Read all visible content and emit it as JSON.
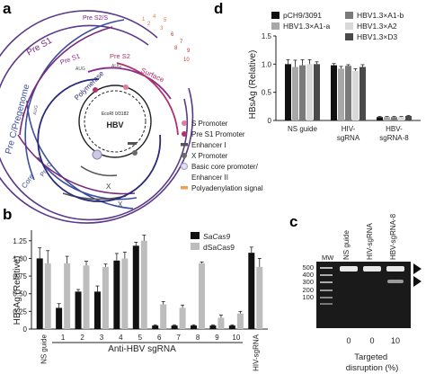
{
  "panels": {
    "a": "a",
    "b": "b",
    "c": "c",
    "d": "d"
  },
  "panel_a": {
    "arcs": {
      "pre_s2_s": "Pre S2/S",
      "pre_s1": "Pre S1",
      "pre_c_pregenome": "Pre C/Pregenome",
      "core": "Core",
      "pre_c": "Pre C",
      "polymerase": "Polymerase",
      "inner_pre_s1": "Pre S1",
      "inner_pre_s2": "Pre S2",
      "surface": "Surface",
      "x": "X",
      "x_outer": "X"
    },
    "aug": "AUG",
    "center": {
      "site": "EcoRI 0/3182",
      "name": "HBV"
    },
    "site_numbers": [
      "1",
      "2",
      "3",
      "4",
      "5",
      "6",
      "7",
      "8",
      "9",
      "10"
    ],
    "legend": [
      {
        "label": "S Promoter",
        "color": "#e07aa0",
        "shape": "dot"
      },
      {
        "label": "Pre S1 Promoter",
        "color": "#b0306a",
        "shape": "dot"
      },
      {
        "label": "Enhancer I",
        "color": "#555555",
        "shape": "bar"
      },
      {
        "label": "X Promoter",
        "color": "#6a6a6a",
        "shape": "dot"
      },
      {
        "label": "Basic core promoter/",
        "color": "#a9a5c8",
        "shape": "ring"
      },
      {
        "label": "Enhancer II",
        "color": "",
        "shape": "none"
      },
      {
        "label": "Polyadenylation signal",
        "color": "#f0a050",
        "shape": "bar"
      }
    ]
  },
  "panel_b": {
    "ylabel": "HBsAg (Relative)",
    "xgroup_label": "Anti-HBV sgRNA",
    "legend": [
      "SaCas9",
      "dSaCas9"
    ]
  },
  "panel_c": {
    "lanes": [
      "MW",
      "NS guide",
      "HIV-sgRNA",
      "HBV-sgRNA-8"
    ],
    "ladder": [
      "500",
      "400",
      "300",
      "200",
      "100"
    ],
    "disruption_values": [
      "0",
      "0",
      "10"
    ],
    "xlabel": "Targeted disruption (%)"
  },
  "panel_d": {
    "ylabel": "HBsAg (Relative)"
  },
  "chart_data": [
    {
      "panel": "b",
      "type": "bar",
      "categories": [
        "NS guide",
        "1",
        "2",
        "3",
        "4",
        "5",
        "6",
        "7",
        "8",
        "9",
        "10",
        "HIV-sgRNA"
      ],
      "series": [
        {
          "name": "SaCas9",
          "color": "#111111",
          "values": [
            1.0,
            0.3,
            0.53,
            0.53,
            0.97,
            1.18,
            0.05,
            0.05,
            0.05,
            0.05,
            0.05,
            1.08
          ],
          "errors": [
            0.15,
            0.06,
            0.03,
            0.08,
            0.1,
            0.05,
            0.01,
            0.01,
            0.01,
            0.01,
            0.01,
            0.08
          ]
        },
        {
          "name": "dSaCas9",
          "color": "#bdbdbd",
          "values": [
            0.93,
            0.93,
            0.9,
            0.88,
            1.0,
            1.25,
            0.35,
            0.3,
            0.93,
            0.16,
            0.22,
            0.88
          ],
          "errors": [
            0.18,
            0.1,
            0.06,
            0.04,
            0.09,
            0.08,
            0.04,
            0.04,
            0.02,
            0.04,
            0.03,
            0.12
          ]
        }
      ],
      "ylabel": "HBsAg (Relative)",
      "yticks": [
        "0",
        "0.25",
        "0.50",
        "0.75",
        "1.00",
        "1.25"
      ],
      "ylim": [
        0,
        1.4
      ]
    },
    {
      "panel": "d",
      "type": "bar",
      "categories": [
        "NS guide",
        "HIV-sgRNA",
        "HBV-sgRNA-8"
      ],
      "series": [
        {
          "name": "pCH9/3091",
          "color": "#111111",
          "values": [
            1.0,
            0.98,
            0.06
          ],
          "errors": [
            0.08,
            0.03,
            0.01
          ]
        },
        {
          "name": "HBV1.3×A1-a",
          "color": "#a8a8a8",
          "values": [
            0.95,
            0.92,
            0.06
          ],
          "errors": [
            0.12,
            0.04,
            0.01
          ]
        },
        {
          "name": "HBV1.3×A1-b",
          "color": "#7a7a7a",
          "values": [
            0.98,
            0.97,
            0.06
          ],
          "errors": [
            0.1,
            0.02,
            0.01
          ]
        },
        {
          "name": "HBV1.3×A2",
          "color": "#d9d9d9",
          "values": [
            1.0,
            0.88,
            0.06
          ],
          "errors": [
            0.08,
            0.04,
            0.01
          ]
        },
        {
          "name": "HBV1.3×D3",
          "color": "#4a4a4a",
          "values": [
            1.0,
            0.95,
            0.08
          ],
          "errors": [
            0.04,
            0.04,
            0.01
          ]
        }
      ],
      "ylabel": "HBsAg (Relative)",
      "yticks": [
        "0",
        "0.5",
        "1.0",
        "1.5"
      ],
      "ylim": [
        0,
        1.5
      ]
    }
  ]
}
